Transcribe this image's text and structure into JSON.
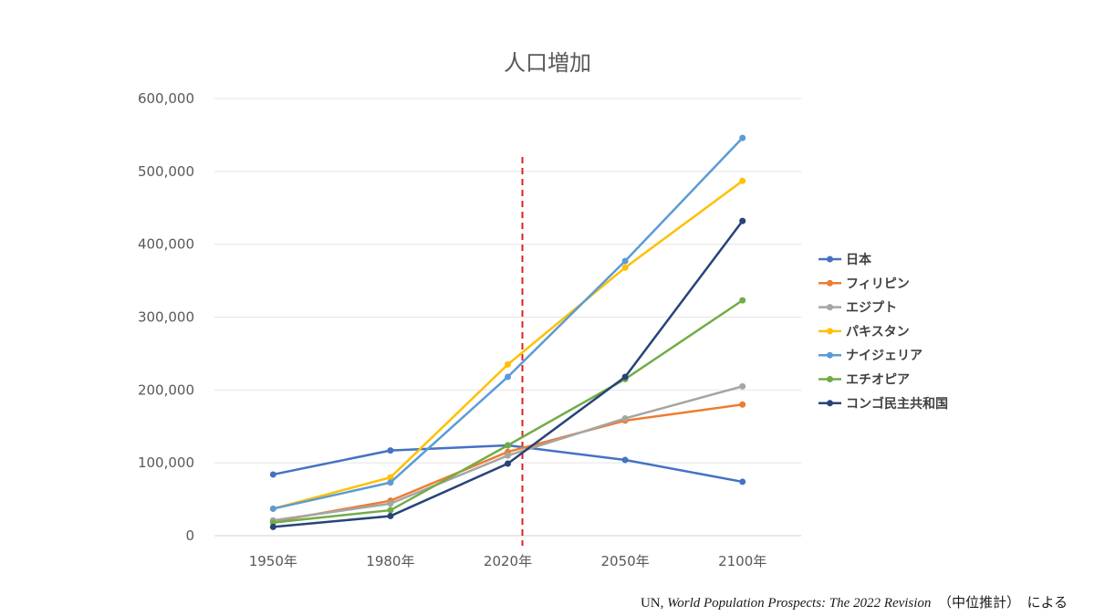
{
  "chart_data": {
    "type": "line",
    "title": "人口増加",
    "categories": [
      "1950年",
      "1980年",
      "2020年",
      "2050年",
      "2100年"
    ],
    "ylim": [
      0,
      600000
    ],
    "yticks": [
      0,
      100000,
      200000,
      300000,
      400000,
      500000,
      600000
    ],
    "ytick_labels": [
      "0",
      "100,000",
      "200,000",
      "300,000",
      "400,000",
      "500,000",
      "600,000"
    ],
    "grid": true,
    "legend_position": "right",
    "reference_line": {
      "category_between": [
        "2020年",
        "2050年"
      ],
      "color": "#e0201b",
      "style": "dashed"
    },
    "series": [
      {
        "name": "日本",
        "color": "#4472c4",
        "values": [
          84000,
          117000,
          124000,
          104000,
          74000
        ]
      },
      {
        "name": "フィリピン",
        "color": "#ed7d31",
        "values": [
          19000,
          48000,
          115000,
          158000,
          180000
        ]
      },
      {
        "name": "エジプト",
        "color": "#a5a5a5",
        "values": [
          21000,
          44000,
          110000,
          161000,
          205000
        ]
      },
      {
        "name": "パキスタン",
        "color": "#ffc000",
        "values": [
          37000,
          80000,
          235000,
          368000,
          487000
        ]
      },
      {
        "name": "ナイジェリア",
        "color": "#5b9bd5",
        "values": [
          37000,
          73000,
          218000,
          377000,
          546000
        ]
      },
      {
        "name": "エチオピア",
        "color": "#70ad47",
        "values": [
          18000,
          35000,
          124000,
          215000,
          323000
        ]
      },
      {
        "name": "コンゴ民主共和国",
        "color": "#264478",
        "values": [
          12000,
          27000,
          99000,
          218000,
          432000
        ]
      }
    ]
  },
  "source": {
    "prefix": "UN, ",
    "title_italic": "World Population Prospects: The 2022 Revision",
    "suffix": "　（中位推計）　による"
  }
}
